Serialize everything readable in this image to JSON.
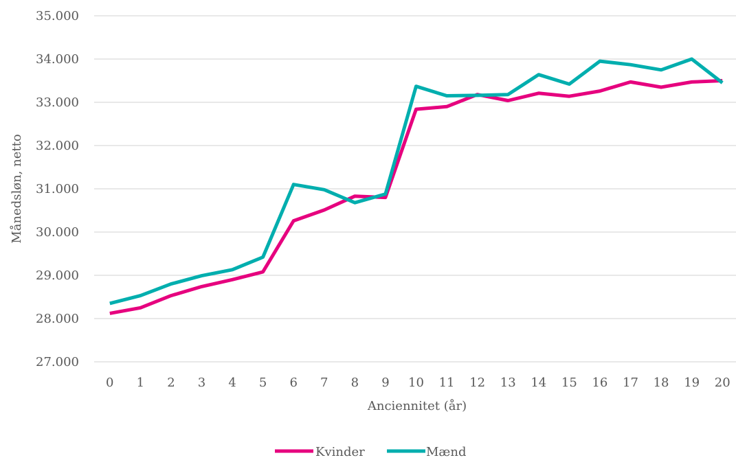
{
  "chart_data": {
    "type": "line",
    "title": "",
    "xlabel": "Anciennitet (år)",
    "ylabel": "Månedsløn, netto",
    "categories": [
      "0",
      "1",
      "2",
      "3",
      "4",
      "5",
      "6",
      "7",
      "8",
      "9",
      "10",
      "11",
      "12",
      "13",
      "14",
      "15",
      "16",
      "17",
      "18",
      "19",
      "20"
    ],
    "ylim": [
      27000,
      35000
    ],
    "yticks": [
      27000,
      28000,
      29000,
      30000,
      31000,
      32000,
      33000,
      34000,
      35000
    ],
    "ytick_labels": [
      "27.000",
      "28.000",
      "29.000",
      "30.000",
      "31.000",
      "32.000",
      "33.000",
      "34.000",
      "35.000"
    ],
    "grid": true,
    "legend_position": "bottom",
    "series": [
      {
        "name": "Kvinder",
        "color": "#e6007e",
        "values": [
          28120,
          28250,
          28530,
          28740,
          28900,
          29080,
          30260,
          30510,
          30830,
          30800,
          32840,
          32900,
          33180,
          33040,
          33210,
          33140,
          33260,
          33470,
          33350,
          33470,
          33500
        ]
      },
      {
        "name": "Mænd",
        "color": "#00aeae",
        "values": [
          28350,
          28530,
          28800,
          28990,
          29130,
          29420,
          31100,
          30980,
          30680,
          30880,
          33370,
          33150,
          33160,
          33180,
          33640,
          33420,
          33950,
          33870,
          33750,
          34000,
          33450
        ]
      }
    ]
  }
}
